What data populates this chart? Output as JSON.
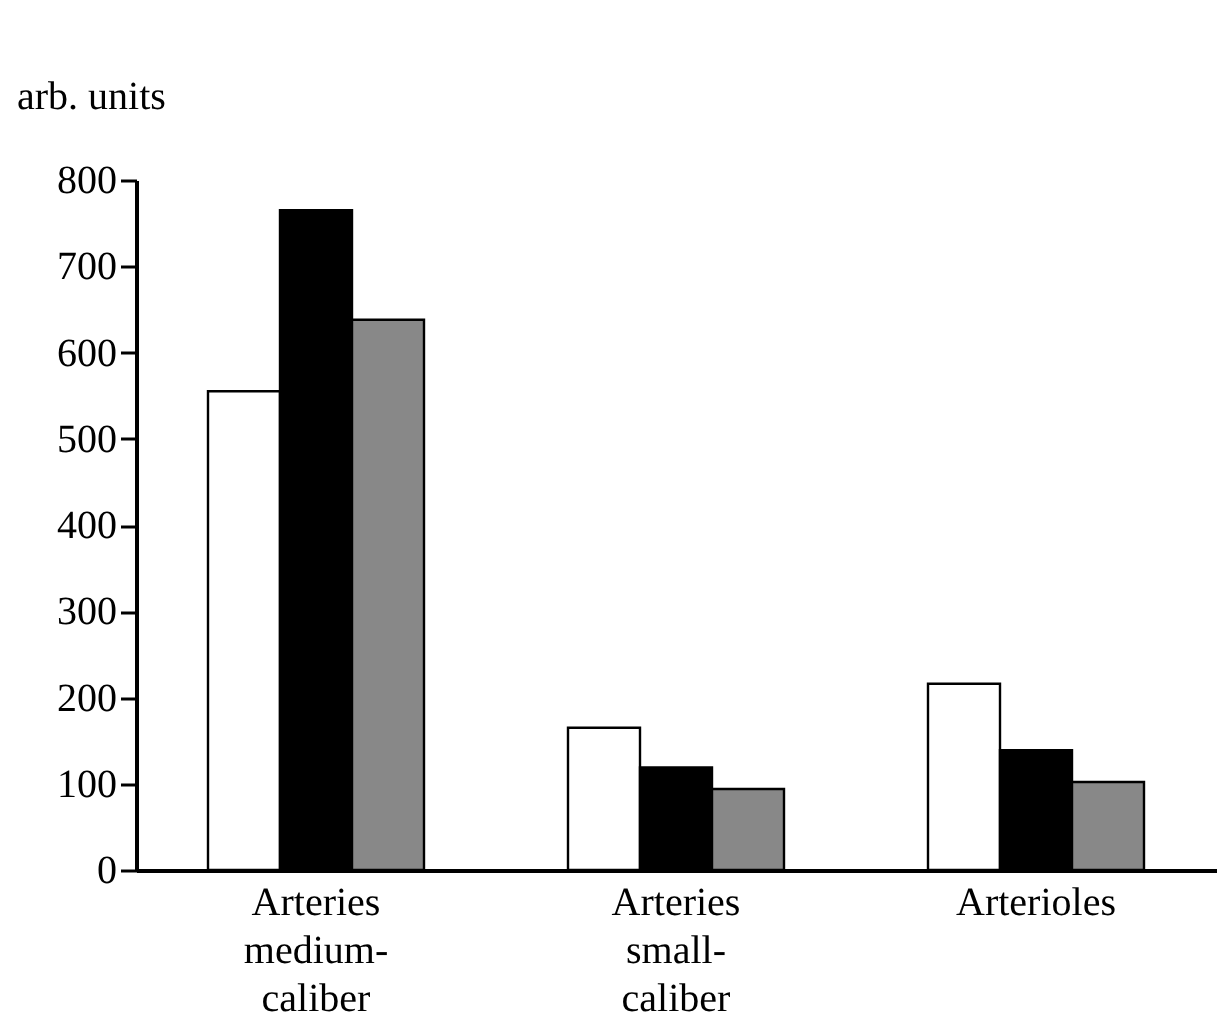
{
  "chart_data": {
    "type": "bar",
    "ylabel": "arb. units",
    "categories": [
      "Arteries\nmedium-\ncaliber",
      "Arteries\nsmall-\ncaliber",
      "Arterioles"
    ],
    "series": [
      {
        "color": "#ffffff",
        "values": [
          555,
          165,
          216
        ]
      },
      {
        "color": "#000000",
        "values": [
          765,
          119,
          139
        ]
      },
      {
        "color": "#888888",
        "values": [
          638,
          94,
          102
        ]
      }
    ],
    "ylim": [
      0,
      800
    ],
    "yticks": [
      0,
      100,
      200,
      300,
      400,
      500,
      600,
      700,
      800
    ],
    "grid": false,
    "legend": false
  }
}
